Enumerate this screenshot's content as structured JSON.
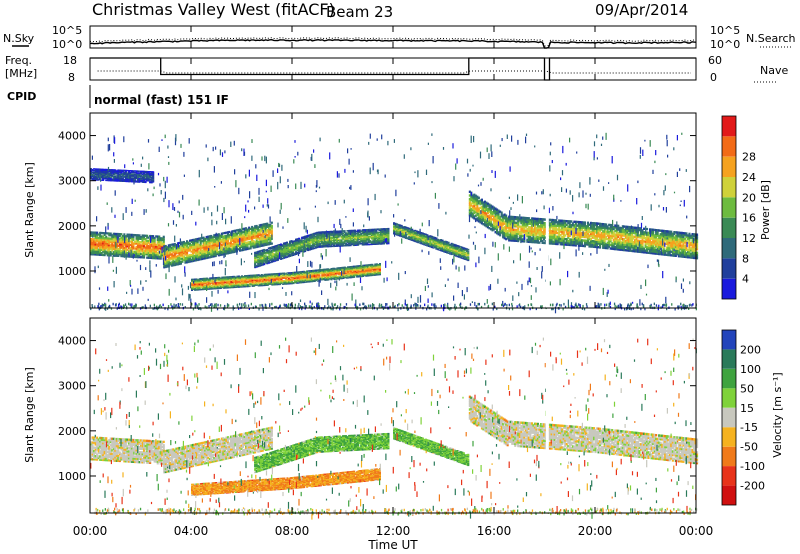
{
  "header": {
    "station": "Christmas Valley West (fitACF)",
    "beam": "Beam 23",
    "date": "09/Apr/2014"
  },
  "noise_panel": {
    "left_label": "N.Sky",
    "right_label": "N.Search",
    "left_ticks": [
      "10^5",
      "10^0"
    ],
    "right_ticks": [
      "10^5",
      "10^0"
    ]
  },
  "freq_panel": {
    "left_label_1": "Freq.",
    "left_label_2": "[MHz]",
    "right_label": "Nave",
    "left_ticks": [
      "18",
      "8"
    ],
    "right_ticks": [
      "60",
      "0"
    ]
  },
  "cpid": {
    "label": "CPID",
    "mode": "normal (fast) 151 IF"
  },
  "x_axis": {
    "title": "Time UT",
    "ticks": [
      "00:00",
      "04:00",
      "08:00",
      "12:00",
      "16:00",
      "20:00",
      "00:00"
    ]
  },
  "y_axis": {
    "title": "Slant Range [km]",
    "ticks": [
      "1000",
      "2000",
      "3000",
      "4000"
    ]
  },
  "power_colorbar": {
    "title": "Power [dB]",
    "ticks": [
      "4",
      "8",
      "12",
      "16",
      "20",
      "24",
      "28"
    ],
    "colors": [
      "#1a1add",
      "#203f9c",
      "#2f6a7a",
      "#3a8a55",
      "#6dbb3f",
      "#cfd13a",
      "#f5a21f",
      "#f26b17",
      "#e21a1a"
    ]
  },
  "velocity_colorbar": {
    "title": "Velocity [m s⁻¹]",
    "ticks": [
      "200",
      "100",
      "50",
      "15",
      "-15",
      "-50",
      "-100",
      "-200"
    ],
    "colors": [
      "#2244bb",
      "#2a7a5a",
      "#3fa33f",
      "#7fd23a",
      "#c8c8be",
      "#f5b21f",
      "#f07a1a",
      "#e8331a",
      "#d01010"
    ]
  },
  "chart_data": [
    {
      "type": "line",
      "title": "Christmas Valley West (fitACF) Beam 23 09/Apr/2014",
      "series": [
        {
          "name": "N.Sky",
          "x": [
            0,
            3,
            6,
            9,
            12,
            15,
            18,
            21,
            24
          ],
          "values": [
            10,
            30,
            60,
            60,
            50,
            40,
            20,
            15,
            20
          ]
        }
      ],
      "xlim": [
        0,
        24
      ],
      "xlabel": "",
      "ylabel": "N.Sky",
      "yscale": "log"
    },
    {
      "type": "line",
      "series": [
        {
          "name": "Freq.",
          "x": [
            0,
            2.8,
            2.8,
            15.0,
            15.0,
            18.0,
            18.0,
            18.2,
            18.2,
            24
          ],
          "values": [
            18,
            18,
            10.5,
            10.5,
            18,
            18,
            8,
            8,
            18,
            18
          ]
        }
      ],
      "xlim": [
        0,
        24
      ],
      "ylim": [
        8,
        18
      ],
      "ylabel": "Freq. [MHz]"
    },
    {
      "type": "heatmap",
      "title": "Power [dB]",
      "xlabel": "Time UT",
      "ylabel": "Slant Range [km]",
      "xlim": [
        0,
        24
      ],
      "ylim": [
        180,
        4500
      ],
      "colorbar": {
        "label": "Power [dB]",
        "ticks": [
          4,
          8,
          12,
          16,
          20,
          24,
          28
        ],
        "range": [
          0,
          32
        ]
      },
      "bands": [
        {
          "t_start": 0.0,
          "t_end": 2.9,
          "range_km": [
            [
              0,
              1620
            ],
            [
              2.9,
              1520
            ]
          ],
          "width_km": 520,
          "peak_dB": 28
        },
        {
          "t_start": 0.0,
          "t_end": 2.5,
          "range_km": [
            [
              0,
              3150
            ],
            [
              2.5,
              3080
            ]
          ],
          "width_km": 260,
          "peak_dB": 8
        },
        {
          "t_start": 2.9,
          "t_end": 7.2,
          "range_km": [
            [
              2.9,
              1320
            ],
            [
              7.2,
              1850
            ]
          ],
          "width_km": 500,
          "peak_dB": 26
        },
        {
          "t_start": 4.0,
          "t_end": 11.5,
          "range_km": [
            [
              4.0,
              700
            ],
            [
              8.0,
              850
            ],
            [
              11.5,
              1050
            ]
          ],
          "width_km": 260,
          "peak_dB": 28
        },
        {
          "t_start": 6.5,
          "t_end": 11.8,
          "range_km": [
            [
              6.5,
              1250
            ],
            [
              9.0,
              1700
            ],
            [
              11.8,
              1780
            ]
          ],
          "width_km": 350,
          "peak_dB": 18
        },
        {
          "t_start": 12.0,
          "t_end": 15.0,
          "range_km": [
            [
              12.0,
              1950
            ],
            [
              15.0,
              1350
            ]
          ],
          "width_km": 260,
          "peak_dB": 20
        },
        {
          "t_start": 15.0,
          "t_end": 24.0,
          "range_km": [
            [
              15.0,
              2500
            ],
            [
              16.5,
              1950
            ],
            [
              20.0,
              1800
            ],
            [
              24.0,
              1550
            ]
          ],
          "width_km": 560,
          "peak_dB": 24
        }
      ]
    },
    {
      "type": "heatmap",
      "title": "Velocity [m s-1]",
      "xlabel": "Time UT",
      "ylabel": "Slant Range [km]",
      "xlim": [
        0,
        24
      ],
      "ylim": [
        180,
        4500
      ],
      "colorbar": {
        "label": "Velocity [m s-1]",
        "ticks": [
          200,
          100,
          50,
          15,
          -15,
          -50,
          -100,
          -200
        ]
      },
      "bands": [
        {
          "t_start": 0.0,
          "t_end": 2.9,
          "range_km": [
            [
              0,
              1620
            ],
            [
              2.9,
              1520
            ]
          ],
          "width_km": 520,
          "velocity": 0
        },
        {
          "t_start": 2.9,
          "t_end": 7.2,
          "range_km": [
            [
              2.9,
              1320
            ],
            [
              7.2,
              1850
            ]
          ],
          "width_km": 500,
          "velocity": 0
        },
        {
          "t_start": 4.0,
          "t_end": 11.5,
          "range_km": [
            [
              4.0,
              700
            ],
            [
              8.0,
              850
            ],
            [
              11.5,
              1050
            ]
          ],
          "width_km": 260,
          "velocity": -50
        },
        {
          "t_start": 6.5,
          "t_end": 11.8,
          "range_km": [
            [
              6.5,
              1250
            ],
            [
              9.0,
              1700
            ],
            [
              11.8,
              1780
            ]
          ],
          "width_km": 350,
          "velocity": 50
        },
        {
          "t_start": 12.0,
          "t_end": 15.0,
          "range_km": [
            [
              12.0,
              1950
            ],
            [
              15.0,
              1350
            ]
          ],
          "width_km": 260,
          "velocity": 50
        },
        {
          "t_start": 15.0,
          "t_end": 24.0,
          "range_km": [
            [
              15.0,
              2500
            ],
            [
              16.5,
              1950
            ],
            [
              20.0,
              1800
            ],
            [
              24.0,
              1550
            ]
          ],
          "width_km": 560,
          "velocity": 0
        }
      ]
    }
  ]
}
